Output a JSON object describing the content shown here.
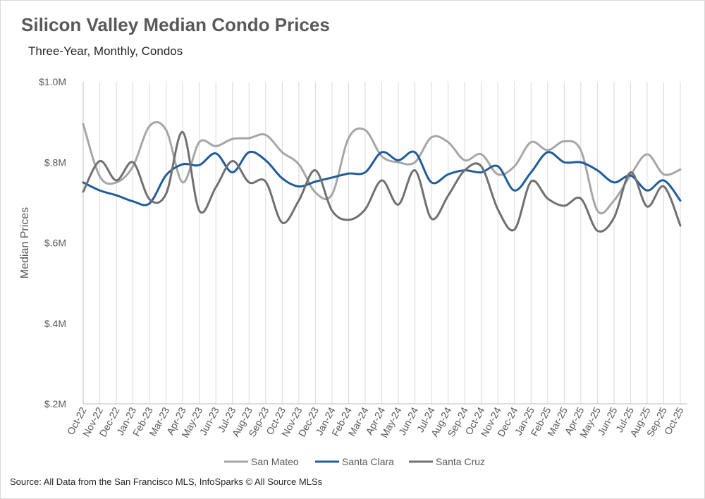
{
  "chart_data": {
    "type": "line",
    "title": "Silicon Valley Median Condo Prices",
    "subtitle": "Three-Year, Monthly, Condos",
    "xlabel": "",
    "ylabel": "Median Prices",
    "ylim": [
      0.2,
      1.0
    ],
    "yticks": [
      0.2,
      0.4,
      0.6,
      0.8,
      1.0
    ],
    "ytick_labels": [
      "$.2M",
      "$.4M",
      "$.6M",
      "$.8M",
      "$1.0M"
    ],
    "grid": "vertical",
    "legend_position": "bottom",
    "categories": [
      "Oct-22",
      "Nov-22",
      "Dec-22",
      "Jan-23",
      "Feb-23",
      "Mar-23",
      "Apr-23",
      "May-23",
      "Jun-23",
      "Jul-23",
      "Aug-23",
      "Sep-23",
      "Oct-23",
      "Nov-23",
      "Dec-23",
      "Jan-24",
      "Feb-24",
      "Mar-24",
      "Apr-24",
      "May-24",
      "Jun-24",
      "Jul-24",
      "Aug-24",
      "Sep-24",
      "Oct-24",
      "Nov-24",
      "Dec-24",
      "Jan-25",
      "Feb-25",
      "Mar-25",
      "Apr-25",
      "May-25",
      "Jun-25",
      "Jul-25",
      "Aug-25",
      "Sep-25",
      "Oct-25"
    ],
    "series": [
      {
        "name": "San Mateo",
        "color": "#a6a6a6",
        "values": [
          0.895,
          0.765,
          0.75,
          0.79,
          0.89,
          0.88,
          0.75,
          0.85,
          0.84,
          0.858,
          0.86,
          0.868,
          0.825,
          0.795,
          0.725,
          0.72,
          0.86,
          0.88,
          0.815,
          0.8,
          0.8,
          0.862,
          0.85,
          0.805,
          0.82,
          0.77,
          0.79,
          0.85,
          0.83,
          0.852,
          0.83,
          0.68,
          0.705,
          0.768,
          0.82,
          0.77,
          0.782
        ]
      },
      {
        "name": "Santa Clara",
        "color": "#1f5c99",
        "values": [
          0.75,
          0.73,
          0.718,
          0.703,
          0.698,
          0.768,
          0.795,
          0.793,
          0.822,
          0.775,
          0.825,
          0.805,
          0.76,
          0.74,
          0.752,
          0.762,
          0.772,
          0.775,
          0.825,
          0.805,
          0.825,
          0.75,
          0.77,
          0.78,
          0.775,
          0.79,
          0.73,
          0.775,
          0.825,
          0.8,
          0.8,
          0.78,
          0.75,
          0.767,
          0.73,
          0.755,
          0.705
        ]
      },
      {
        "name": "Santa Cruz",
        "color": "#707070",
        "values": [
          0.727,
          0.803,
          0.755,
          0.8,
          0.708,
          0.722,
          0.875,
          0.68,
          0.738,
          0.803,
          0.75,
          0.752,
          0.65,
          0.705,
          0.78,
          0.68,
          0.657,
          0.683,
          0.755,
          0.695,
          0.78,
          0.66,
          0.717,
          0.78,
          0.79,
          0.683,
          0.633,
          0.752,
          0.71,
          0.692,
          0.71,
          0.63,
          0.662,
          0.775,
          0.69,
          0.74,
          0.643
        ]
      }
    ],
    "source": "Source: All Data from the San Francisco MLS, InfoSparks © All Source MLSs"
  }
}
